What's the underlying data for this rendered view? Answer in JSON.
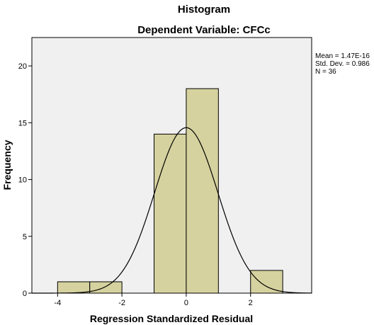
{
  "chart_data": {
    "type": "bar",
    "title": "Histogram",
    "subtitle": "Dependent Variable: CFCc",
    "xlabel": "Regression Standardized Residual",
    "ylabel": "Frequency",
    "xlim": [
      -4.8,
      3.9
    ],
    "ylim": [
      0,
      22.5
    ],
    "x_ticks": [
      -4,
      -2,
      0,
      2
    ],
    "x_tick_labels": [
      "-4",
      "-2",
      "0",
      "2"
    ],
    "y_ticks": [
      0,
      5,
      10,
      15,
      20
    ],
    "y_tick_labels": [
      "0",
      "5",
      "10",
      "15",
      "20"
    ],
    "bins": [
      {
        "x0": -4,
        "x1": -3,
        "count": 1
      },
      {
        "x0": -3,
        "x1": -2,
        "count": 1
      },
      {
        "x0": -1,
        "x1": 0,
        "count": 14
      },
      {
        "x0": 0,
        "x1": 1,
        "count": 18
      },
      {
        "x0": 2,
        "x1": 3,
        "count": 2
      }
    ],
    "normal_curve": {
      "mean": 0,
      "sd": 0.986,
      "n": 36,
      "bin_width": 1
    },
    "stats": [
      "Mean = 1.47E-16",
      "Std. Dev. = 0.986",
      "N = 36"
    ],
    "colors": {
      "bar_fill": "#d6d29f",
      "plot_bg": "#f0f0f0",
      "stroke": "#000000"
    },
    "grid": false
  }
}
